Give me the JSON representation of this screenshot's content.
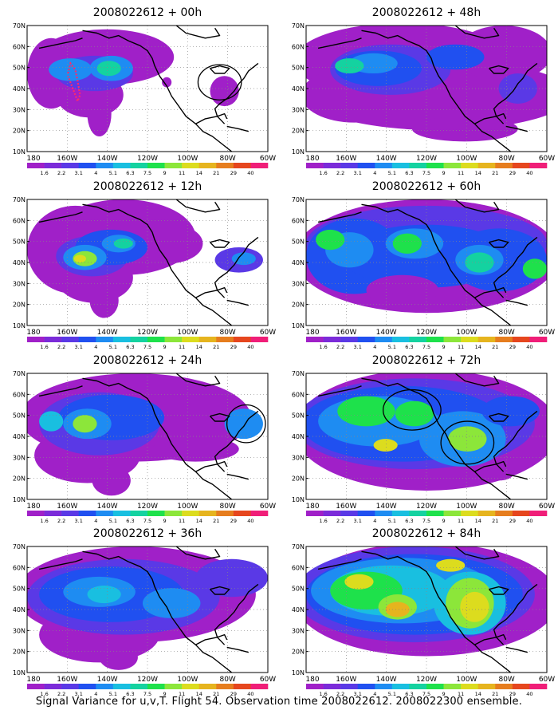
{
  "panels": [
    {
      "title": "2008022612 + 00h"
    },
    {
      "title": "2008022612 + 48h"
    },
    {
      "title": "2008022612 + 12h"
    },
    {
      "title": "2008022612 + 60h"
    },
    {
      "title": "2008022612 + 24h"
    },
    {
      "title": "2008022612 + 72h"
    },
    {
      "title": "2008022612 + 36h"
    },
    {
      "title": "2008022612 + 84h"
    }
  ],
  "map": {
    "lat_labels": [
      "70N",
      "60N",
      "50N",
      "40N",
      "30N",
      "20N",
      "10N"
    ],
    "lon_labels": [
      "180",
      "160W",
      "140W",
      "120W",
      "100W",
      "80W",
      "60W"
    ]
  },
  "colorbar": {
    "labels": [
      "1.6",
      "2.2",
      "3.1",
      "4",
      "5.1",
      "6.3",
      "7.5",
      "9",
      "11",
      "14",
      "21",
      "29",
      "40"
    ],
    "colors": [
      "#a020c8",
      "#7b2bd9",
      "#5a39e6",
      "#2050f0",
      "#1e8cf2",
      "#19bfe0",
      "#14d2a0",
      "#1ee14b",
      "#8ce63a",
      "#dcdc1e",
      "#e6b41e",
      "#e67d1e",
      "#e6461e",
      "#f01e78"
    ]
  },
  "caption": "Signal Variance for u,v,T. Flight 54. Observation time 2008022612. 2008022300 ensemble."
}
